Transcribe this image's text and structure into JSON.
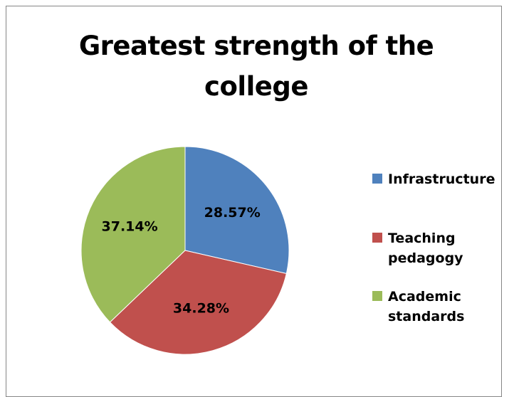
{
  "chart_data": {
    "type": "pie",
    "title": "Greatest strength of the college",
    "categories": [
      "Infrastructure",
      "Teaching pedagogy",
      "Academic standards"
    ],
    "values": [
      28.57,
      34.28,
      37.14
    ],
    "data_labels": [
      "28.57%",
      "34.28%",
      "37.14%"
    ],
    "colors": [
      "#4F81BD",
      "#C0504D",
      "#9BBB59"
    ],
    "start_angle": "12 o'clock",
    "direction": "clockwise",
    "legend_position": "right"
  }
}
